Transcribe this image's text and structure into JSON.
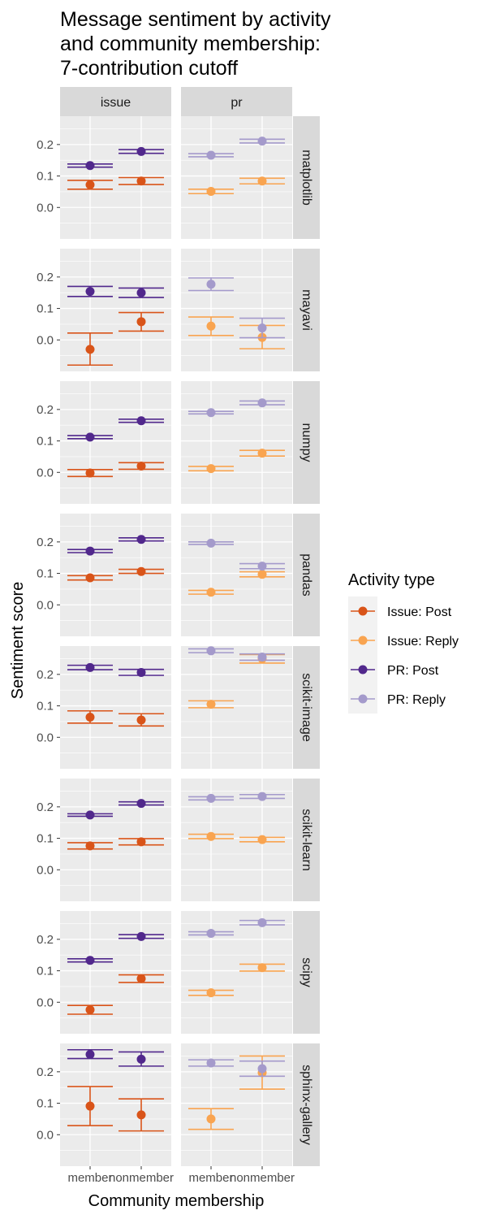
{
  "chart_data": {
    "type": "scatter",
    "title_lines": [
      "Message sentiment by activity",
      "and community membership:",
      "7-contribution cutoff"
    ],
    "xlabel": "Community membership",
    "ylabel": "Sentiment score",
    "x_categories": [
      "member",
      "nonmember"
    ],
    "column_facets": [
      "issue",
      "pr"
    ],
    "row_facets": [
      "matplotlib",
      "mayavi",
      "numpy",
      "pandas",
      "scikit-image",
      "scikit-learn",
      "scipy",
      "sphinx-gallery"
    ],
    "ylim": [
      -0.1,
      0.29
    ],
    "y_ticks": [
      "0.0",
      "0.1",
      "0.2"
    ],
    "grid": true,
    "legend": {
      "title": "Activity type",
      "position": "right",
      "items": [
        {
          "label": "Issue: Post",
          "color": "#D95419"
        },
        {
          "label": "Issue: Reply",
          "color": "#F9A450"
        },
        {
          "label": "PR: Post",
          "color": "#51288C"
        },
        {
          "label": "PR: Reply",
          "color": "#A49ACB"
        }
      ]
    },
    "series": [
      {
        "name": "Issue: Post",
        "color": "#D95419",
        "column": "issue",
        "points": [
          {
            "facet": "matplotlib",
            "x": "member",
            "y": 0.072,
            "lo": 0.058,
            "hi": 0.086
          },
          {
            "facet": "matplotlib",
            "x": "nonmember",
            "y": 0.084,
            "lo": 0.073,
            "hi": 0.095
          },
          {
            "facet": "mayavi",
            "x": "member",
            "y": -0.03,
            "lo": -0.08,
            "hi": 0.022
          },
          {
            "facet": "mayavi",
            "x": "nonmember",
            "y": 0.058,
            "lo": 0.028,
            "hi": 0.087
          },
          {
            "facet": "numpy",
            "x": "member",
            "y": -0.002,
            "lo": -0.013,
            "hi": 0.009
          },
          {
            "facet": "numpy",
            "x": "nonmember",
            "y": 0.02,
            "lo": 0.01,
            "hi": 0.031
          },
          {
            "facet": "pandas",
            "x": "member",
            "y": 0.086,
            "lo": 0.079,
            "hi": 0.093
          },
          {
            "facet": "pandas",
            "x": "nonmember",
            "y": 0.106,
            "lo": 0.1,
            "hi": 0.113
          },
          {
            "facet": "scikit-image",
            "x": "member",
            "y": 0.064,
            "lo": 0.045,
            "hi": 0.084
          },
          {
            "facet": "scikit-image",
            "x": "nonmember",
            "y": 0.055,
            "lo": 0.036,
            "hi": 0.075
          },
          {
            "facet": "scikit-learn",
            "x": "member",
            "y": 0.076,
            "lo": 0.066,
            "hi": 0.086
          },
          {
            "facet": "scikit-learn",
            "x": "nonmember",
            "y": 0.089,
            "lo": 0.079,
            "hi": 0.099
          },
          {
            "facet": "scipy",
            "x": "member",
            "y": -0.024,
            "lo": -0.038,
            "hi": -0.01
          },
          {
            "facet": "scipy",
            "x": "nonmember",
            "y": 0.075,
            "lo": 0.063,
            "hi": 0.087
          },
          {
            "facet": "sphinx-gallery",
            "x": "member",
            "y": 0.091,
            "lo": 0.029,
            "hi": 0.153
          },
          {
            "facet": "sphinx-gallery",
            "x": "nonmember",
            "y": 0.063,
            "lo": 0.012,
            "hi": 0.114
          }
        ]
      },
      {
        "name": "Issue: Reply",
        "color": "#F9A450",
        "column": "pr",
        "points": [
          {
            "facet": "matplotlib",
            "x": "member",
            "y": 0.051,
            "lo": 0.044,
            "hi": 0.058
          },
          {
            "facet": "matplotlib",
            "x": "nonmember",
            "y": 0.084,
            "lo": 0.075,
            "hi": 0.093
          },
          {
            "facet": "mayavi",
            "x": "member",
            "y": 0.044,
            "lo": 0.014,
            "hi": 0.073
          },
          {
            "facet": "mayavi",
            "x": "nonmember",
            "y": 0.008,
            "lo": -0.028,
            "hi": 0.046
          },
          {
            "facet": "numpy",
            "x": "member",
            "y": 0.012,
            "lo": 0.005,
            "hi": 0.019
          },
          {
            "facet": "numpy",
            "x": "nonmember",
            "y": 0.061,
            "lo": 0.052,
            "hi": 0.07
          },
          {
            "facet": "pandas",
            "x": "member",
            "y": 0.04,
            "lo": 0.034,
            "hi": 0.046
          },
          {
            "facet": "pandas",
            "x": "nonmember",
            "y": 0.097,
            "lo": 0.089,
            "hi": 0.105
          },
          {
            "facet": "scikit-image",
            "x": "member",
            "y": 0.105,
            "lo": 0.094,
            "hi": 0.116
          },
          {
            "facet": "scikit-image",
            "x": "nonmember",
            "y": 0.25,
            "lo": 0.236,
            "hi": 0.263
          },
          {
            "facet": "scikit-learn",
            "x": "member",
            "y": 0.106,
            "lo": 0.099,
            "hi": 0.113
          },
          {
            "facet": "scikit-learn",
            "x": "nonmember",
            "y": 0.096,
            "lo": 0.089,
            "hi": 0.103
          },
          {
            "facet": "scipy",
            "x": "member",
            "y": 0.03,
            "lo": 0.022,
            "hi": 0.038
          },
          {
            "facet": "scipy",
            "x": "nonmember",
            "y": 0.11,
            "lo": 0.099,
            "hi": 0.121
          },
          {
            "facet": "sphinx-gallery",
            "x": "member",
            "y": 0.05,
            "lo": 0.017,
            "hi": 0.083
          },
          {
            "facet": "sphinx-gallery",
            "x": "nonmember",
            "y": 0.197,
            "lo": 0.145,
            "hi": 0.25
          }
        ]
      },
      {
        "name": "PR: Post",
        "color": "#51288C",
        "column": "issue",
        "points": [
          {
            "facet": "matplotlib",
            "x": "member",
            "y": 0.133,
            "lo": 0.128,
            "hi": 0.138
          },
          {
            "facet": "matplotlib",
            "x": "nonmember",
            "y": 0.178,
            "lo": 0.172,
            "hi": 0.184
          },
          {
            "facet": "mayavi",
            "x": "member",
            "y": 0.154,
            "lo": 0.138,
            "hi": 0.17
          },
          {
            "facet": "mayavi",
            "x": "nonmember",
            "y": 0.15,
            "lo": 0.135,
            "hi": 0.165
          },
          {
            "facet": "numpy",
            "x": "member",
            "y": 0.112,
            "lo": 0.107,
            "hi": 0.117
          },
          {
            "facet": "numpy",
            "x": "nonmember",
            "y": 0.164,
            "lo": 0.159,
            "hi": 0.169
          },
          {
            "facet": "pandas",
            "x": "member",
            "y": 0.171,
            "lo": 0.166,
            "hi": 0.176
          },
          {
            "facet": "pandas",
            "x": "nonmember",
            "y": 0.208,
            "lo": 0.203,
            "hi": 0.213
          },
          {
            "facet": "scikit-image",
            "x": "member",
            "y": 0.222,
            "lo": 0.215,
            "hi": 0.229
          },
          {
            "facet": "scikit-image",
            "x": "nonmember",
            "y": 0.206,
            "lo": 0.197,
            "hi": 0.216
          },
          {
            "facet": "scikit-learn",
            "x": "member",
            "y": 0.174,
            "lo": 0.17,
            "hi": 0.178
          },
          {
            "facet": "scikit-learn",
            "x": "nonmember",
            "y": 0.211,
            "lo": 0.206,
            "hi": 0.216
          },
          {
            "facet": "scipy",
            "x": "member",
            "y": 0.133,
            "lo": 0.128,
            "hi": 0.138
          },
          {
            "facet": "scipy",
            "x": "nonmember",
            "y": 0.209,
            "lo": 0.203,
            "hi": 0.215
          },
          {
            "facet": "sphinx-gallery",
            "x": "member",
            "y": 0.255,
            "lo": 0.242,
            "hi": 0.27
          },
          {
            "facet": "sphinx-gallery",
            "x": "nonmember",
            "y": 0.24,
            "lo": 0.218,
            "hi": 0.263
          }
        ]
      },
      {
        "name": "PR: Reply",
        "color": "#A49ACB",
        "column": "pr",
        "points": [
          {
            "facet": "matplotlib",
            "x": "member",
            "y": 0.166,
            "lo": 0.161,
            "hi": 0.171
          },
          {
            "facet": "matplotlib",
            "x": "nonmember",
            "y": 0.211,
            "lo": 0.205,
            "hi": 0.217
          },
          {
            "facet": "mayavi",
            "x": "member",
            "y": 0.177,
            "lo": 0.157,
            "hi": 0.197
          },
          {
            "facet": "mayavi",
            "x": "nonmember",
            "y": 0.038,
            "lo": 0.007,
            "hi": 0.069
          },
          {
            "facet": "numpy",
            "x": "member",
            "y": 0.19,
            "lo": 0.186,
            "hi": 0.194
          },
          {
            "facet": "numpy",
            "x": "nonmember",
            "y": 0.221,
            "lo": 0.215,
            "hi": 0.227
          },
          {
            "facet": "pandas",
            "x": "member",
            "y": 0.196,
            "lo": 0.192,
            "hi": 0.2
          },
          {
            "facet": "pandas",
            "x": "nonmember",
            "y": 0.123,
            "lo": 0.115,
            "hi": 0.131
          },
          {
            "facet": "scikit-image",
            "x": "member",
            "y": 0.275,
            "lo": 0.269,
            "hi": 0.281
          },
          {
            "facet": "scikit-image",
            "x": "nonmember",
            "y": 0.255,
            "lo": 0.245,
            "hi": 0.265
          },
          {
            "facet": "scikit-learn",
            "x": "member",
            "y": 0.227,
            "lo": 0.222,
            "hi": 0.232
          },
          {
            "facet": "scikit-learn",
            "x": "nonmember",
            "y": 0.233,
            "lo": 0.227,
            "hi": 0.239
          },
          {
            "facet": "scipy",
            "x": "member",
            "y": 0.219,
            "lo": 0.214,
            "hi": 0.224
          },
          {
            "facet": "scipy",
            "x": "nonmember",
            "y": 0.253,
            "lo": 0.246,
            "hi": 0.26
          },
          {
            "facet": "sphinx-gallery",
            "x": "member",
            "y": 0.228,
            "lo": 0.218,
            "hi": 0.238
          },
          {
            "facet": "sphinx-gallery",
            "x": "nonmember",
            "y": 0.21,
            "lo": 0.186,
            "hi": 0.234
          }
        ]
      }
    ]
  }
}
